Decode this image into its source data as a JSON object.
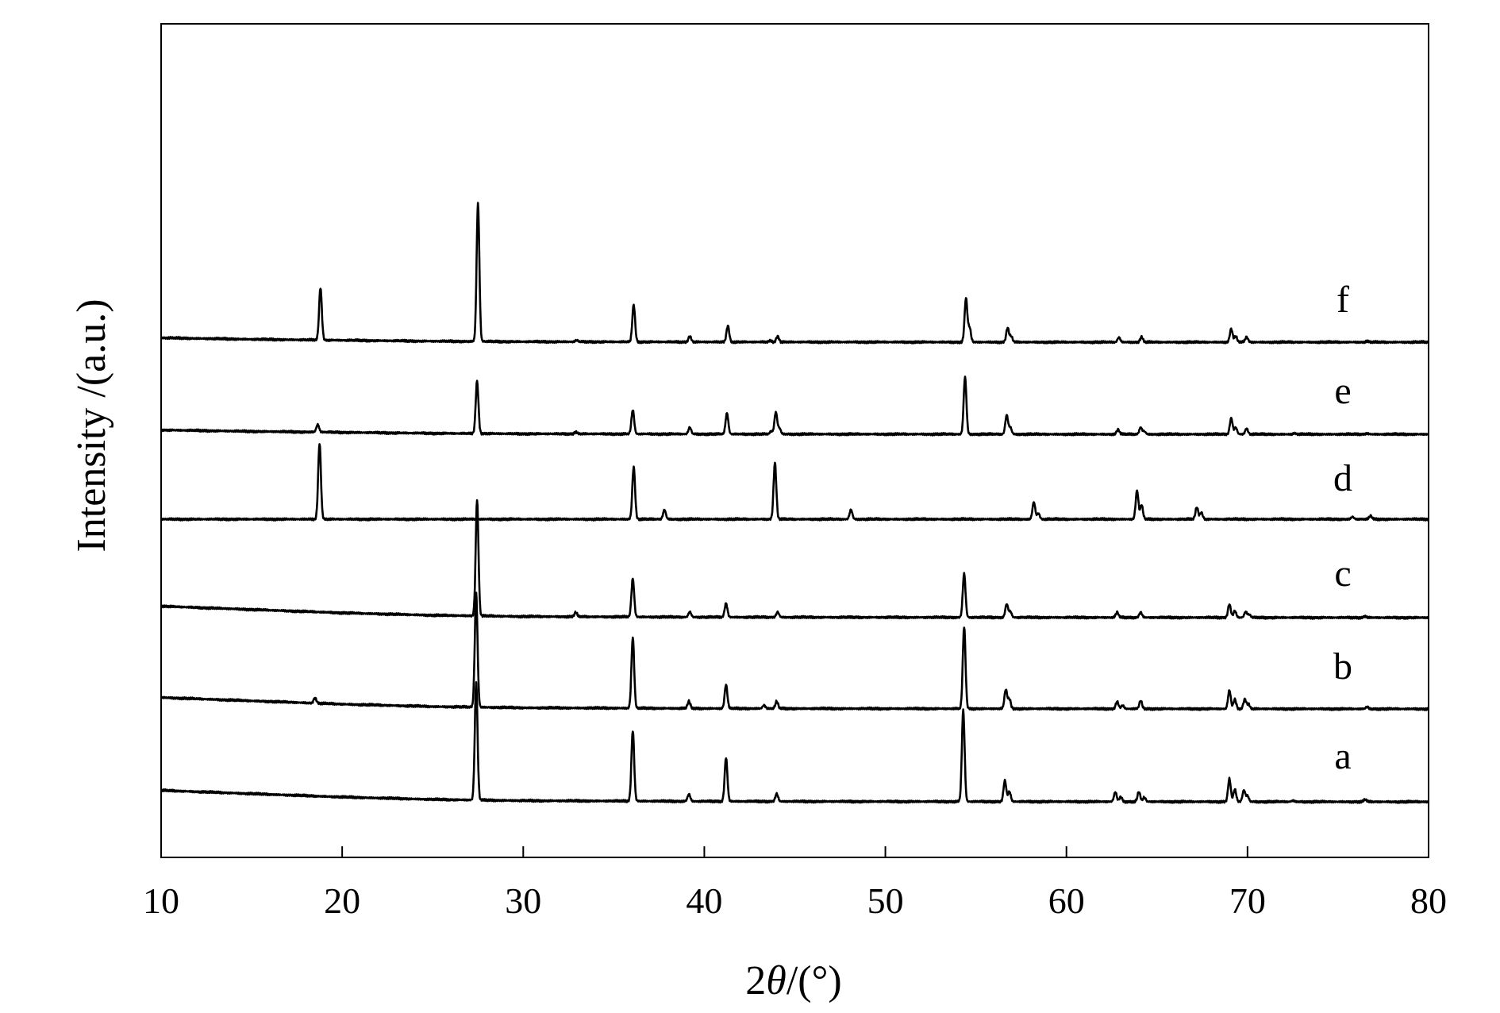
{
  "chart_data": {
    "type": "line",
    "title": "",
    "xlabel_prefix": "2",
    "xlabel_symbol": "θ",
    "xlabel_suffix": "/(°)",
    "ylabel": "Intensity /(a.u.)",
    "xlim": [
      10,
      80
    ],
    "xticks": [
      10,
      20,
      30,
      40,
      50,
      60,
      70,
      80
    ],
    "y_ticks_shown": false,
    "grid": false,
    "legend": "inline series letters at right",
    "series": [
      {
        "name": "a",
        "baseline": [
          [
            10,
            1.2
          ],
          [
            15,
            0.85
          ],
          [
            20,
            0.5
          ],
          [
            25,
            0.25
          ],
          [
            30,
            0.12
          ],
          [
            40,
            0.05
          ],
          [
            50,
            0.03
          ],
          [
            60,
            0.02
          ],
          [
            70,
            0.01
          ],
          [
            80,
            0.0
          ]
        ],
        "peaks": [
          [
            27.4,
            12.4
          ],
          [
            36.05,
            7.4
          ],
          [
            39.15,
            0.75
          ],
          [
            41.2,
            4.6
          ],
          [
            44.0,
            0.8
          ],
          [
            54.3,
            9.6
          ],
          [
            56.6,
            2.2
          ],
          [
            56.85,
            1.05
          ],
          [
            62.7,
            1.0
          ],
          [
            63.0,
            0.5
          ],
          [
            64.0,
            1.05
          ],
          [
            64.3,
            0.45
          ],
          [
            69.0,
            2.4
          ],
          [
            69.3,
            1.3
          ],
          [
            69.8,
            1.2
          ],
          [
            70.0,
            0.6
          ],
          [
            72.5,
            0.12
          ],
          [
            76.5,
            0.25
          ]
        ]
      },
      {
        "name": "b",
        "baseline": [
          [
            10,
            1.2
          ],
          [
            15,
            0.85
          ],
          [
            20,
            0.5
          ],
          [
            25,
            0.25
          ],
          [
            30,
            0.12
          ],
          [
            40,
            0.05
          ],
          [
            50,
            0.03
          ],
          [
            60,
            0.02
          ],
          [
            70,
            0.01
          ],
          [
            80,
            0.0
          ]
        ],
        "peaks": [
          [
            18.5,
            0.55
          ],
          [
            27.4,
            12.0
          ],
          [
            36.05,
            7.4
          ],
          [
            39.15,
            0.75
          ],
          [
            41.2,
            2.5
          ],
          [
            43.3,
            0.35
          ],
          [
            44.0,
            0.75
          ],
          [
            54.35,
            8.6
          ],
          [
            56.65,
            2.0
          ],
          [
            56.85,
            1.0
          ],
          [
            62.8,
            0.75
          ],
          [
            63.1,
            0.35
          ],
          [
            64.1,
            0.85
          ],
          [
            69.0,
            1.95
          ],
          [
            69.3,
            1.0
          ],
          [
            69.85,
            1.0
          ],
          [
            70.05,
            0.5
          ],
          [
            76.6,
            0.2
          ]
        ]
      },
      {
        "name": "c",
        "baseline": [
          [
            10,
            1.2
          ],
          [
            15,
            0.85
          ],
          [
            20,
            0.5
          ],
          [
            25,
            0.25
          ],
          [
            30,
            0.12
          ],
          [
            40,
            0.05
          ],
          [
            50,
            0.03
          ],
          [
            60,
            0.02
          ],
          [
            70,
            0.01
          ],
          [
            80,
            0.0
          ]
        ],
        "peaks": [
          [
            27.45,
            12.2
          ],
          [
            32.9,
            0.45
          ],
          [
            36.05,
            4.0
          ],
          [
            39.2,
            0.55
          ],
          [
            41.2,
            1.45
          ],
          [
            44.05,
            0.55
          ],
          [
            54.35,
            4.6
          ],
          [
            56.7,
            1.4
          ],
          [
            56.9,
            0.6
          ],
          [
            62.8,
            0.55
          ],
          [
            64.1,
            0.55
          ],
          [
            69.0,
            1.4
          ],
          [
            69.3,
            0.7
          ],
          [
            69.9,
            0.6
          ],
          [
            70.1,
            0.3
          ],
          [
            76.5,
            0.15
          ]
        ]
      },
      {
        "name": "d",
        "baseline": [
          [
            10,
            0.0
          ],
          [
            80,
            0.0
          ]
        ],
        "peaks": [
          [
            18.75,
            8.0
          ],
          [
            36.1,
            5.5
          ],
          [
            37.8,
            1.0
          ],
          [
            43.9,
            5.9
          ],
          [
            48.1,
            1.0
          ],
          [
            58.2,
            1.8
          ],
          [
            58.45,
            0.6
          ],
          [
            63.9,
            3.0
          ],
          [
            64.15,
            1.5
          ],
          [
            67.2,
            1.25
          ],
          [
            67.45,
            0.7
          ],
          [
            75.8,
            0.25
          ],
          [
            76.8,
            0.35
          ]
        ]
      },
      {
        "name": "e",
        "baseline": [
          [
            10,
            0.45
          ],
          [
            15,
            0.3
          ],
          [
            20,
            0.2
          ],
          [
            25,
            0.1
          ],
          [
            30,
            0.05
          ],
          [
            40,
            0.02
          ],
          [
            50,
            0.01
          ],
          [
            60,
            0.0
          ],
          [
            80,
            0.0
          ]
        ],
        "peaks": [
          [
            18.65,
            0.8
          ],
          [
            27.45,
            5.5
          ],
          [
            32.9,
            0.2
          ],
          [
            36.05,
            2.5
          ],
          [
            39.2,
            0.7
          ],
          [
            41.25,
            2.2
          ],
          [
            43.7,
            0.3
          ],
          [
            43.95,
            2.3
          ],
          [
            44.15,
            0.6
          ],
          [
            54.4,
            6.0
          ],
          [
            56.7,
            2.0
          ],
          [
            56.9,
            0.7
          ],
          [
            62.85,
            0.5
          ],
          [
            64.1,
            0.7
          ],
          [
            64.3,
            0.3
          ],
          [
            69.1,
            1.7
          ],
          [
            69.35,
            0.7
          ],
          [
            69.95,
            0.6
          ],
          [
            72.6,
            0.1
          ],
          [
            76.6,
            0.1
          ]
        ]
      },
      {
        "name": "f",
        "baseline": [
          [
            10,
            0.45
          ],
          [
            15,
            0.3
          ],
          [
            20,
            0.2
          ],
          [
            25,
            0.1
          ],
          [
            30,
            0.05
          ],
          [
            40,
            0.02
          ],
          [
            50,
            0.01
          ],
          [
            60,
            0.0
          ],
          [
            80,
            0.0
          ]
        ],
        "peaks": [
          [
            18.8,
            5.5
          ],
          [
            27.5,
            14.5
          ],
          [
            32.95,
            0.15
          ],
          [
            36.1,
            3.9
          ],
          [
            39.2,
            0.6
          ],
          [
            41.3,
            1.7
          ],
          [
            43.65,
            0.15
          ],
          [
            44.05,
            0.6
          ],
          [
            54.45,
            4.6
          ],
          [
            54.65,
            1.5
          ],
          [
            56.75,
            1.5
          ],
          [
            56.95,
            0.6
          ],
          [
            62.9,
            0.5
          ],
          [
            64.15,
            0.55
          ],
          [
            69.1,
            1.4
          ],
          [
            69.35,
            0.6
          ],
          [
            69.95,
            0.55
          ],
          [
            76.6,
            0.1
          ]
        ]
      }
    ]
  }
}
